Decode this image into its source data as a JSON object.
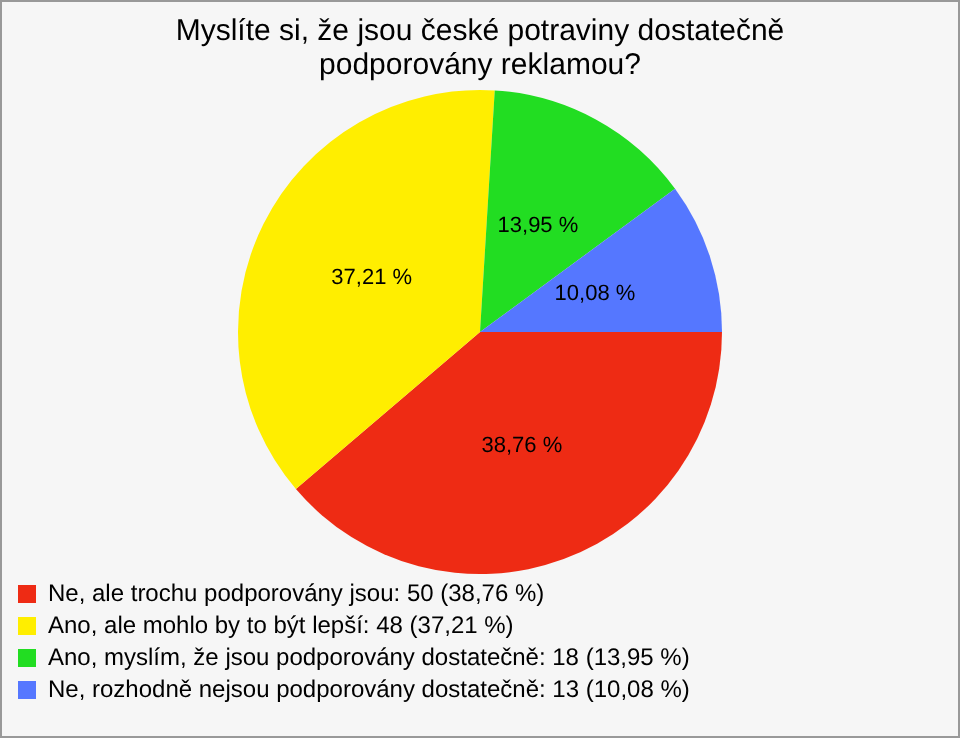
{
  "chart_data": {
    "type": "pie",
    "title": "Myslíte si, že jsou české potraviny dostatečně podporovány reklamou?",
    "categories": [
      "Ne, ale trochu podporovány jsou: 50 (38,76 %)",
      "Ano, ale mohlo by to být lepší: 48 (37,21 %)",
      "Ano, myslím, že jsou podporovány dostatečně: 18 (13,95 %)",
      "Ne, rozhodně nejsou podporovány dostatečně: 13 (10,08 %)"
    ],
    "values": [
      38.76,
      37.21,
      13.95,
      10.08
    ],
    "colors": [
      "#ee2b14",
      "#ffee00",
      "#22dd22",
      "#5577ff"
    ],
    "value_labels": [
      "38,76 %",
      "37,21 %",
      "13,95 %",
      "10,08 %"
    ],
    "legend": "bottom left"
  }
}
